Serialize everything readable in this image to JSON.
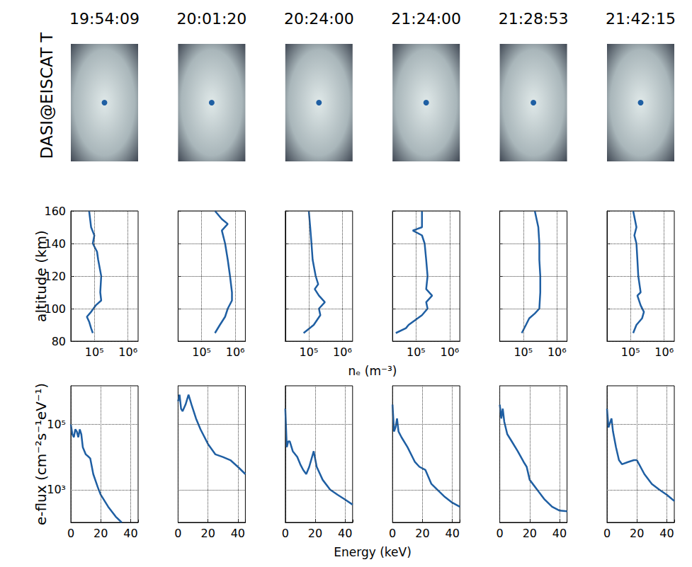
{
  "images": {
    "label": "DASI@EISCAT T",
    "titles": [
      "19:54:09",
      "20:01:20",
      "20:24:00",
      "21:24:00",
      "21:28:53",
      "21:42:15"
    ]
  },
  "chart_data": [
    {
      "type": "line",
      "log": "x",
      "grid": true,
      "color": "#1f5fa3",
      "xlabel": "nₑ (m⁻³)",
      "ylabel": "altitude (km)",
      "xlim": [
        20000,
        2000000
      ],
      "xticks": [
        {
          "value": 100000,
          "label": "10⁵"
        },
        {
          "value": 1000000,
          "label": "10⁶"
        }
      ],
      "ylim": [
        80,
        160
      ],
      "yticks": [
        80,
        100,
        120,
        140,
        160
      ],
      "x": [
        70000,
        80000,
        100000,
        90000,
        120000,
        130000,
        160000,
        150000,
        160000,
        110000,
        80000,
        60000,
        70000,
        80000,
        90000
      ],
      "values": [
        160,
        150,
        145,
        140,
        135,
        130,
        120,
        110,
        105,
        102,
        98,
        95,
        92,
        88,
        85
      ]
    },
    {
      "type": "line",
      "log": "x",
      "grid": true,
      "color": "#1f5fa3",
      "tick_labels": "x",
      "xlim": [
        20000,
        2000000
      ],
      "xticks": [
        {
          "value": 100000,
          "label": "10⁵"
        },
        {
          "value": 1000000,
          "label": "10⁶"
        }
      ],
      "ylim": [
        80,
        160
      ],
      "yticks": [
        80,
        100,
        120,
        140,
        160
      ],
      "x": [
        250000,
        400000,
        600000,
        400000,
        500000,
        600000,
        700000,
        800000,
        800000,
        600000,
        500000,
        350000,
        250000
      ],
      "values": [
        160,
        155,
        152,
        148,
        140,
        130,
        120,
        110,
        105,
        100,
        95,
        90,
        85
      ]
    },
    {
      "type": "line",
      "log": "x",
      "grid": true,
      "color": "#1f5fa3",
      "tick_labels": "x",
      "xlim": [
        20000,
        2000000
      ],
      "xticks": [
        {
          "value": 100000,
          "label": "10⁵"
        },
        {
          "value": 1000000,
          "label": "10⁶"
        }
      ],
      "ylim": [
        80,
        160
      ],
      "yticks": [
        80,
        100,
        120,
        140,
        160
      ],
      "x": [
        100000,
        110000,
        120000,
        130000,
        160000,
        190000,
        150000,
        200000,
        300000,
        200000,
        220000,
        140000,
        70000
      ],
      "values": [
        160,
        150,
        140,
        130,
        120,
        115,
        112,
        108,
        104,
        100,
        96,
        90,
        85
      ]
    },
    {
      "type": "line",
      "log": "x",
      "grid": true,
      "color": "#1f5fa3",
      "tick_labels": "x",
      "xlim": [
        20000,
        2000000
      ],
      "xticks": [
        {
          "value": 100000,
          "label": "10⁵"
        },
        {
          "value": 1000000,
          "label": "10⁶"
        }
      ],
      "ylim": [
        80,
        160
      ],
      "yticks": [
        80,
        100,
        120,
        140,
        160
      ],
      "x": [
        150000,
        150000,
        80000,
        150000,
        180000,
        200000,
        220000,
        200000,
        300000,
        200000,
        220000,
        150000,
        60000,
        50000,
        25000
      ],
      "values": [
        160,
        150,
        148,
        145,
        140,
        130,
        120,
        112,
        108,
        104,
        100,
        96,
        90,
        88,
        85
      ]
    },
    {
      "type": "line",
      "log": "x",
      "grid": true,
      "color": "#1f5fa3",
      "tick_labels": "x",
      "xlim": [
        20000,
        2000000
      ],
      "xticks": [
        {
          "value": 100000,
          "label": "10⁵"
        },
        {
          "value": 1000000,
          "label": "10⁶"
        }
      ],
      "ylim": [
        80,
        160
      ],
      "yticks": [
        80,
        100,
        120,
        140,
        160
      ],
      "x": [
        220000,
        280000,
        300000,
        300000,
        320000,
        320000,
        300000,
        220000,
        150000,
        120000,
        90000
      ],
      "values": [
        160,
        150,
        140,
        130,
        120,
        110,
        100,
        97,
        94,
        90,
        85
      ]
    },
    {
      "type": "line",
      "log": "x",
      "grid": true,
      "color": "#1f5fa3",
      "tick_labels": "x",
      "xlim": [
        20000,
        2000000
      ],
      "xticks": [
        {
          "value": 100000,
          "label": "10⁵"
        },
        {
          "value": 1000000,
          "label": "10⁶"
        }
      ],
      "ylim": [
        80,
        160
      ],
      "yticks": [
        80,
        100,
        120,
        140,
        160
      ],
      "x": [
        120000,
        150000,
        130000,
        150000,
        160000,
        170000,
        200000,
        160000,
        200000,
        250000,
        220000,
        150000,
        120000
      ],
      "values": [
        160,
        150,
        145,
        140,
        130,
        120,
        110,
        108,
        102,
        98,
        94,
        90,
        85
      ]
    },
    {
      "type": "line",
      "log": "y",
      "grid": true,
      "color": "#1f5fa3",
      "xlabel": "Energy (keV)",
      "ylabel": "e-flux (cm⁻²s⁻¹eV⁻¹)",
      "xlim": [
        0,
        45
      ],
      "xticks": [
        0,
        20,
        40
      ],
      "ylim": [
        100,
        1500000
      ],
      "yticks": [
        {
          "value": 1000,
          "label": "10³"
        },
        {
          "value": 100000,
          "label": "10⁵"
        }
      ],
      "x": [
        0,
        1,
        2,
        3,
        4,
        5,
        6,
        7,
        8,
        10,
        12,
        13,
        15,
        18,
        20,
        25,
        30,
        34
      ],
      "values": [
        100000,
        50000,
        40000,
        70000,
        60000,
        40000,
        70000,
        50000,
        20000,
        12000,
        10000,
        9000,
        3000,
        1200,
        700,
        300,
        150,
        100
      ]
    },
    {
      "type": "line",
      "log": "y",
      "grid": true,
      "color": "#1f5fa3",
      "tick_labels": "x",
      "xlim": [
        0,
        45
      ],
      "xticks": [
        0,
        20,
        40
      ],
      "ylim": [
        100,
        1500000
      ],
      "yticks": [
        {
          "value": 1000,
          "label": "10³"
        },
        {
          "value": 100000,
          "label": "10⁵"
        }
      ],
      "x": [
        0,
        1,
        2,
        3,
        5,
        7,
        9,
        12,
        15,
        20,
        25,
        30,
        35,
        40,
        45
      ],
      "values": [
        500000,
        800000,
        300000,
        250000,
        400000,
        800000,
        400000,
        150000,
        70000,
        25000,
        12000,
        10000,
        8000,
        5000,
        3000
      ]
    },
    {
      "type": "line",
      "log": "y",
      "grid": true,
      "color": "#1f5fa3",
      "tick_labels": "x",
      "xlim": [
        0,
        45
      ],
      "xticks": [
        0,
        20,
        40
      ],
      "ylim": [
        100,
        1500000
      ],
      "yticks": [
        {
          "value": 1000,
          "label": "10³"
        },
        {
          "value": 100000,
          "label": "10⁵"
        }
      ],
      "x": [
        0,
        1,
        2,
        3,
        5,
        8,
        10,
        12,
        14,
        16,
        19,
        21,
        25,
        30,
        35,
        40,
        45
      ],
      "values": [
        300000,
        20000,
        30000,
        30000,
        15000,
        10000,
        6000,
        4000,
        3000,
        5000,
        15000,
        5000,
        2000,
        1000,
        700,
        500,
        350
      ]
    },
    {
      "type": "line",
      "log": "y",
      "grid": true,
      "color": "#1f5fa3",
      "tick_labels": "x",
      "xlim": [
        0,
        45
      ],
      "xticks": [
        0,
        20,
        40
      ],
      "ylim": [
        100,
        1500000
      ],
      "yticks": [
        {
          "value": 1000,
          "label": "10³"
        },
        {
          "value": 100000,
          "label": "10⁵"
        }
      ],
      "x": [
        0,
        1,
        2,
        3,
        4,
        6,
        10,
        15,
        18,
        22,
        26,
        30,
        35,
        40,
        45
      ],
      "values": [
        400000,
        60000,
        80000,
        150000,
        60000,
        40000,
        20000,
        7000,
        5000,
        4000,
        1500,
        1000,
        600,
        400,
        300
      ]
    },
    {
      "type": "line",
      "log": "y",
      "grid": true,
      "color": "#1f5fa3",
      "tick_labels": "x",
      "xlim": [
        0,
        45
      ],
      "xticks": [
        0,
        20,
        40
      ],
      "ylim": [
        100,
        1500000
      ],
      "yticks": [
        {
          "value": 1000,
          "label": "10³"
        },
        {
          "value": 100000,
          "label": "10⁵"
        }
      ],
      "x": [
        0,
        1,
        2,
        3,
        5,
        8,
        12,
        16,
        18,
        20,
        25,
        30,
        35,
        40,
        45
      ],
      "values": [
        400000,
        150000,
        300000,
        120000,
        50000,
        30000,
        15000,
        7000,
        5000,
        2000,
        1000,
        500,
        300,
        230,
        220
      ]
    },
    {
      "type": "line",
      "log": "y",
      "grid": true,
      "color": "#1f5fa3",
      "tick_labels": "x",
      "xlim": [
        0,
        45
      ],
      "xticks": [
        0,
        20,
        40
      ],
      "ylim": [
        100,
        1500000
      ],
      "yticks": [
        {
          "value": 1000,
          "label": "10³"
        },
        {
          "value": 100000,
          "label": "10⁵"
        }
      ],
      "x": [
        0,
        1,
        3,
        4,
        6,
        8,
        10,
        14,
        18,
        20,
        25,
        30,
        35,
        40,
        45
      ],
      "values": [
        300000,
        80000,
        150000,
        60000,
        20000,
        8000,
        6000,
        7000,
        8000,
        8000,
        3000,
        1500,
        1000,
        700,
        450
      ]
    }
  ]
}
